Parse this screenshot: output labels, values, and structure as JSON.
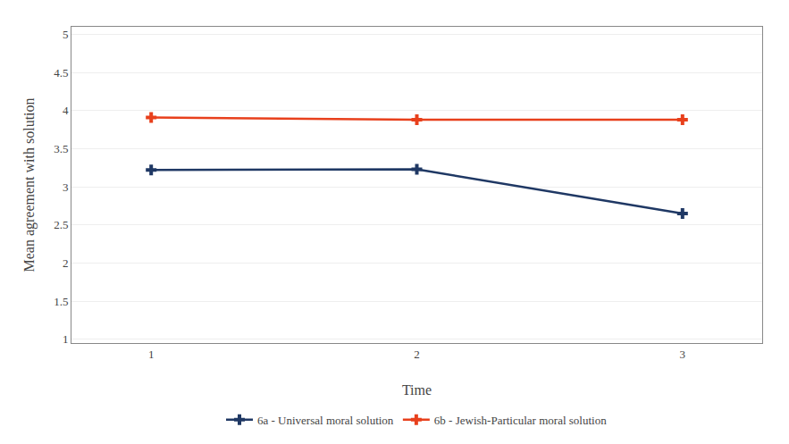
{
  "chart_data": {
    "type": "line",
    "xlabel": "Time",
    "ylabel": "Mean agreement with solution",
    "x": [
      1,
      2,
      3
    ],
    "series": [
      {
        "name": "6a - Universal moral solution",
        "color": "#1f3864",
        "values": [
          3.22,
          3.23,
          2.65
        ],
        "marker": "plus",
        "line_style": "solid"
      },
      {
        "name": "6b - Jewish-Particular moral solution",
        "color": "#e8401c",
        "values": [
          3.91,
          3.88,
          3.88
        ],
        "marker": "plus",
        "line_style": "solid"
      }
    ],
    "xlim": [
      0.7,
      3.3
    ],
    "xticks": [
      1,
      2,
      3
    ],
    "ylim": [
      0.95,
      5.1
    ],
    "yticks": [
      1,
      1.5,
      2,
      2.5,
      3,
      3.5,
      4,
      4.5,
      5
    ],
    "grid": "y",
    "legend": "bottom"
  }
}
